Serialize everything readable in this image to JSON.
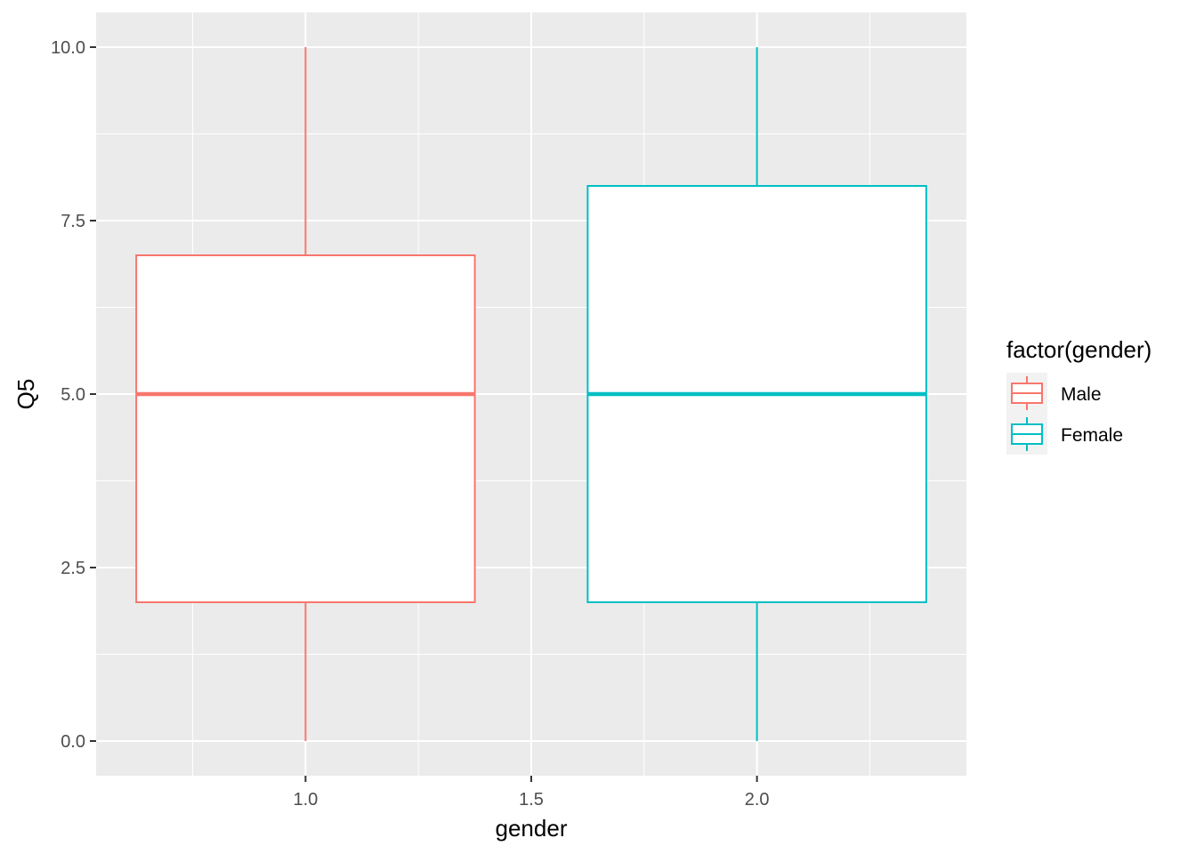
{
  "chart_data": {
    "type": "boxplot",
    "xlabel": "gender",
    "ylabel": "Q5",
    "xlim": [
      0.536,
      2.464
    ],
    "ylim": [
      -0.5,
      10.5
    ],
    "x_ticks": [
      1.0,
      1.5,
      2.0
    ],
    "x_tick_labels": [
      "1.0",
      "1.5",
      "2.0"
    ],
    "y_ticks": [
      0,
      2.5,
      5,
      7.5,
      10
    ],
    "y_tick_labels": [
      "0.0",
      "2.5",
      "5.0",
      "7.5",
      "10.0"
    ],
    "grid": true,
    "legend": {
      "title": "factor(gender)",
      "placement": "right",
      "entries": [
        {
          "label": "Male",
          "color": "#F8766D"
        },
        {
          "label": "Female",
          "color": "#00BFC4"
        }
      ]
    },
    "series": [
      {
        "name": "Male",
        "x": 1.0,
        "min": 0,
        "q1": 2,
        "median": 5,
        "q3": 7,
        "max": 10,
        "color": "#F8766D"
      },
      {
        "name": "Female",
        "x": 2.0,
        "min": 0,
        "q1": 2,
        "median": 5,
        "q3": 8,
        "max": 10,
        "color": "#00BFC4"
      }
    ],
    "panel_background": "#EBEBEB"
  }
}
